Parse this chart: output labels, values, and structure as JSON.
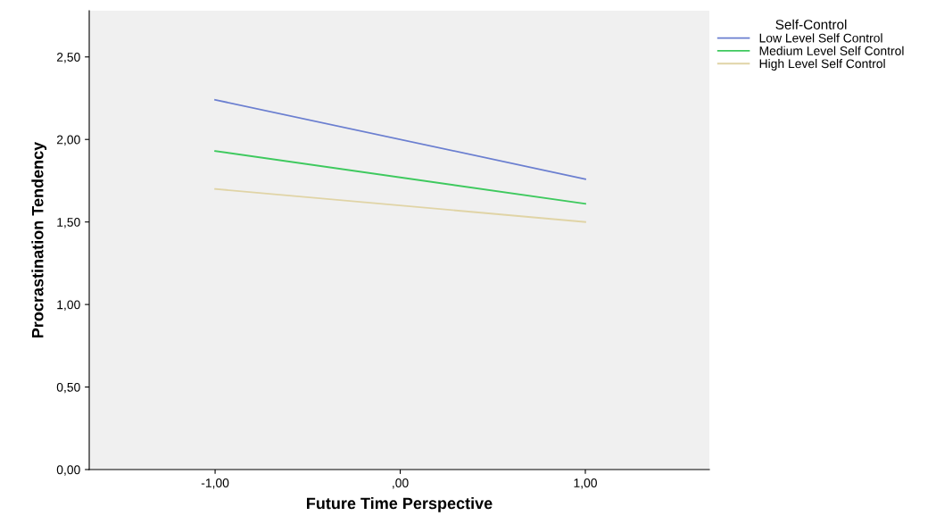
{
  "chart_data": {
    "type": "line",
    "xlabel": "Future Time Perspective",
    "ylabel": "Procrastination Tendency",
    "legend_title": "Self-Control",
    "legend": "top right",
    "x": [
      -1,
      1
    ],
    "series": [
      {
        "name": "Low Level Self Control",
        "color": "#6b7fd0",
        "values": [
          2.24,
          1.76
        ]
      },
      {
        "name": "Medium Level Self Control",
        "color": "#3ec95e",
        "values": [
          1.93,
          1.61
        ]
      },
      {
        "name": "High Level Self Control",
        "color": "#e0d4a6",
        "values": [
          1.7,
          1.5
        ]
      }
    ],
    "xlim": [
      -1.68,
      1.67
    ],
    "ylim": [
      0,
      2.78
    ],
    "xticks": [
      {
        "value": -1,
        "label": "-1,00"
      },
      {
        "value": 0,
        "label": ",00"
      },
      {
        "value": 1,
        "label": "1,00"
      }
    ],
    "yticks": [
      {
        "value": 0,
        "label": "0,00"
      },
      {
        "value": 0.5,
        "label": "0,50"
      },
      {
        "value": 1,
        "label": "1,00"
      },
      {
        "value": 1.5,
        "label": "1,50"
      },
      {
        "value": 2,
        "label": "2,00"
      },
      {
        "value": 2.5,
        "label": "2,50"
      }
    ],
    "grid": false,
    "marker": "none",
    "line_style": "solid"
  }
}
